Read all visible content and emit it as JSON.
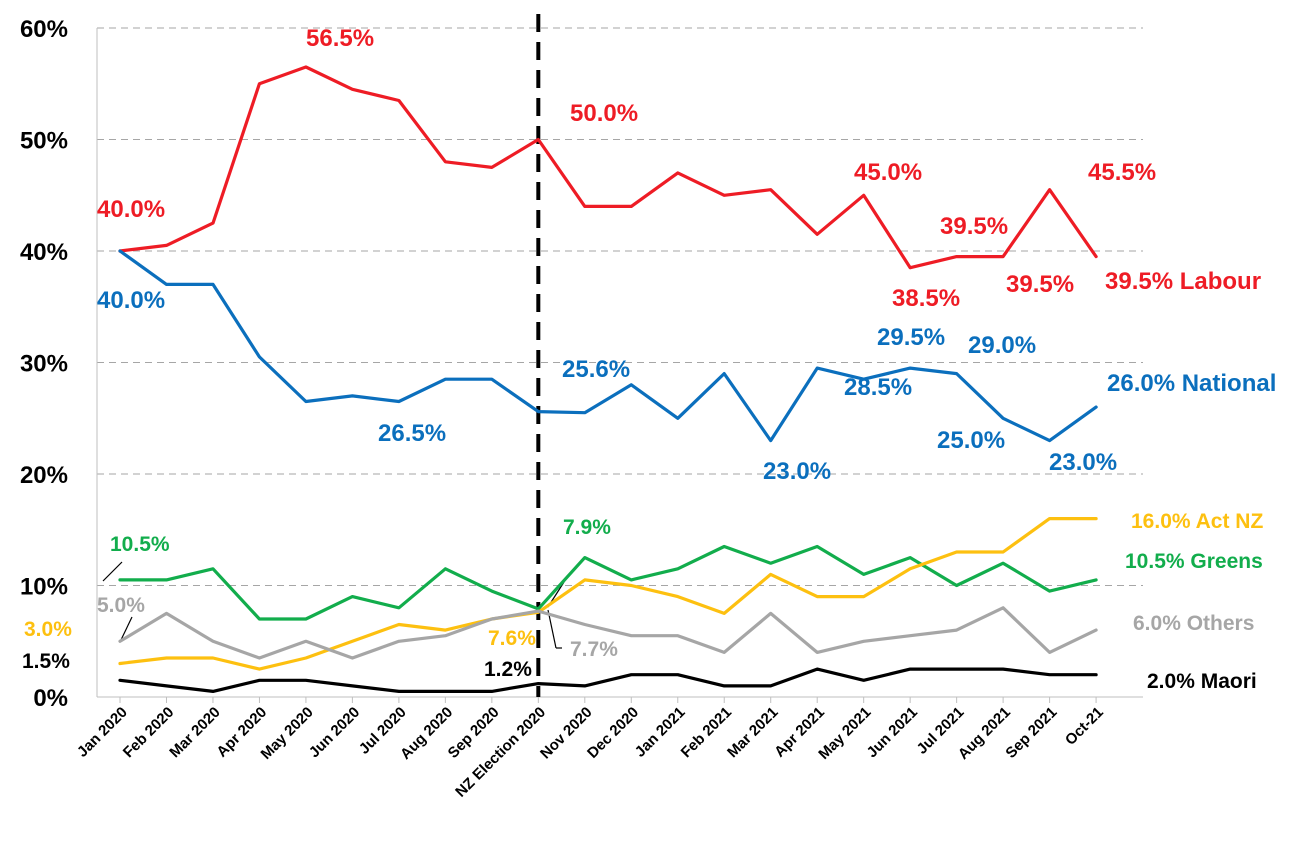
{
  "chart_data": {
    "type": "line",
    "categories": [
      "Jan 2020",
      "Feb 2020",
      "Mar 2020",
      "Apr 2020",
      "May 2020",
      "Jun 2020",
      "Jul 2020",
      "Aug 2020",
      "Sep 2020",
      "NZ Election 2020",
      "Nov 2020",
      "Dec 2020",
      "Jan 2021",
      "Feb 2021",
      "Mar 2021",
      "Apr 2021",
      "May 2021",
      "Jun 2021",
      "Jul 2021",
      "Aug 2021",
      "Sep 2021",
      "Oct-21"
    ],
    "ylim": [
      0,
      60
    ],
    "yticks": [
      "0%",
      "10%",
      "20%",
      "30%",
      "40%",
      "50%",
      "60%"
    ],
    "grid": true,
    "marker": {
      "category": "NZ Election 2020",
      "style": "dashed"
    },
    "colors": {
      "Labour": "#ee1c25",
      "National": "#0b6fbd",
      "Act NZ": "#fdc010",
      "Greens": "#12ad4c",
      "Others": "#a6a6a6",
      "Maori": "#000000"
    },
    "series": [
      {
        "name": "Labour",
        "values": [
          40.0,
          40.5,
          42.5,
          55.0,
          56.5,
          54.5,
          53.5,
          48.0,
          47.5,
          50.0,
          44.0,
          44.0,
          47.0,
          45.0,
          45.5,
          41.5,
          45.0,
          38.5,
          39.5,
          39.5,
          45.5,
          39.5
        ]
      },
      {
        "name": "National",
        "values": [
          40.0,
          37.0,
          37.0,
          30.5,
          26.5,
          27.0,
          26.5,
          28.5,
          28.5,
          25.6,
          25.5,
          28.0,
          25.0,
          29.0,
          23.0,
          29.5,
          28.5,
          29.5,
          29.0,
          25.0,
          23.0,
          26.0
        ]
      },
      {
        "name": "Greens",
        "values": [
          10.5,
          10.5,
          11.5,
          7.0,
          7.0,
          9.0,
          8.0,
          11.5,
          9.5,
          7.9,
          12.5,
          10.5,
          11.5,
          13.5,
          12.0,
          13.5,
          11.0,
          12.5,
          10.0,
          12.0,
          9.5,
          10.5
        ]
      },
      {
        "name": "Act NZ",
        "values": [
          3.0,
          3.5,
          3.5,
          2.5,
          3.5,
          5.0,
          6.5,
          6.0,
          7.0,
          7.6,
          10.5,
          10.0,
          9.0,
          7.5,
          11.0,
          9.0,
          9.0,
          11.5,
          13.0,
          13.0,
          16.0,
          16.0
        ]
      },
      {
        "name": "Others",
        "values": [
          5.0,
          7.5,
          5.0,
          3.5,
          5.0,
          3.5,
          5.0,
          5.5,
          7.0,
          7.7,
          6.5,
          5.5,
          5.5,
          4.0,
          7.5,
          4.0,
          5.0,
          5.5,
          6.0,
          8.0,
          4.0,
          6.0
        ]
      },
      {
        "name": "Maori",
        "values": [
          1.5,
          1.0,
          0.5,
          1.5,
          1.5,
          1.0,
          0.5,
          0.5,
          0.5,
          1.2,
          1.0,
          2.0,
          2.0,
          1.0,
          1.0,
          2.5,
          1.5,
          2.5,
          2.5,
          2.5,
          2.0,
          2.0
        ]
      }
    ],
    "data_labels": [
      {
        "series": "Labour",
        "text": "40.0%"
      },
      {
        "series": "Labour",
        "text": "56.5%"
      },
      {
        "series": "Labour",
        "text": "50.0%"
      },
      {
        "series": "Labour",
        "text": "45.0%"
      },
      {
        "series": "Labour",
        "text": "39.5%"
      },
      {
        "series": "Labour",
        "text": "38.5%"
      },
      {
        "series": "Labour",
        "text": "39.5%"
      },
      {
        "series": "Labour",
        "text": "45.5%"
      },
      {
        "series": "Labour",
        "text": "39.5% Labour"
      },
      {
        "series": "National",
        "text": "40.0%"
      },
      {
        "series": "National",
        "text": "26.5%"
      },
      {
        "series": "National",
        "text": "25.6%"
      },
      {
        "series": "National",
        "text": "23.0%"
      },
      {
        "series": "National",
        "text": "28.5%"
      },
      {
        "series": "National",
        "text": "29.5%"
      },
      {
        "series": "National",
        "text": "29.0%"
      },
      {
        "series": "National",
        "text": "25.0%"
      },
      {
        "series": "National",
        "text": "23.0%"
      },
      {
        "series": "National",
        "text": "26.0% National"
      },
      {
        "series": "Greens",
        "text": "10.5%"
      },
      {
        "series": "Greens",
        "text": "7.9%"
      },
      {
        "series": "Greens",
        "text": "10.5% Greens"
      },
      {
        "series": "Act NZ",
        "text": "3.0%"
      },
      {
        "series": "Act NZ",
        "text": "7.6%"
      },
      {
        "series": "Act NZ",
        "text": "16.0% Act NZ"
      },
      {
        "series": "Others",
        "text": "5.0%"
      },
      {
        "series": "Others",
        "text": "7.7%"
      },
      {
        "series": "Others",
        "text": "6.0% Others"
      },
      {
        "series": "Maori",
        "text": "1.5%"
      },
      {
        "series": "Maori",
        "text": "1.2%"
      },
      {
        "series": "Maori",
        "text": "2.0% Maori"
      }
    ]
  }
}
